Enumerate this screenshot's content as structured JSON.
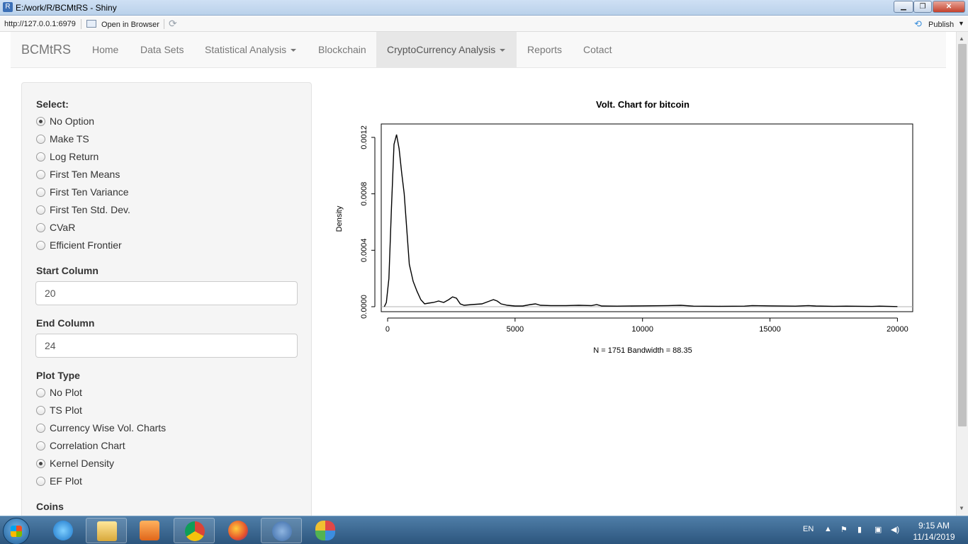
{
  "window": {
    "app_icon": "R",
    "title": "E:/work/R/BCMtRS - Shiny",
    "buttons": {
      "minimize": "▁",
      "maximize": "❐",
      "close": "✕"
    }
  },
  "toolbar": {
    "url": "http://127.0.0.1:6979",
    "open_in_browser": "Open in Browser",
    "publish": "Publish",
    "icons": {
      "refresh": "refresh-icon",
      "publish": "publish-icon"
    }
  },
  "navbar": {
    "brand": "BCMtRS",
    "items": [
      {
        "label": "Home"
      },
      {
        "label": "Data Sets"
      },
      {
        "label": "Statistical Analysis"
      },
      {
        "label": "Blockchain"
      },
      {
        "label": "CryptoCurrency Analysis"
      },
      {
        "label": "Reports"
      },
      {
        "label": "Cotact"
      }
    ],
    "active": "CryptoCurrency Analysis"
  },
  "sidebar": {
    "select_label": "Select:",
    "select_options": [
      {
        "label": "No Option",
        "checked": true
      },
      {
        "label": "Make TS",
        "checked": false
      },
      {
        "label": "Log Return",
        "checked": false
      },
      {
        "label": "First Ten Means",
        "checked": false
      },
      {
        "label": "First Ten Variance",
        "checked": false
      },
      {
        "label": "First Ten Std. Dev.",
        "checked": false
      },
      {
        "label": "CVaR",
        "checked": false
      },
      {
        "label": "Efficient Frontier",
        "checked": false
      }
    ],
    "start_column_label": "Start Column",
    "start_column_value": "20",
    "end_column_label": "End Column",
    "end_column_value": "24",
    "plot_type_label": "Plot Type",
    "plot_type_options": [
      {
        "label": "No Plot",
        "checked": false
      },
      {
        "label": "TS Plot",
        "checked": false
      },
      {
        "label": "Currency Wise Vol. Charts",
        "checked": false
      },
      {
        "label": "Correlation Chart",
        "checked": false
      },
      {
        "label": "Kernel Density",
        "checked": true
      },
      {
        "label": "EF Plot",
        "checked": false
      }
    ],
    "coins_label": "Coins"
  },
  "chart_data": {
    "type": "line",
    "title": "Volt. Chart for  bitcoin",
    "xlabel": "N = 1751   Bandwidth = 88.35",
    "ylabel": "Density",
    "xlim": [
      -250,
      20600
    ],
    "ylim": [
      0,
      0.00126
    ],
    "x_ticks": [
      0,
      5000,
      10000,
      15000,
      20000
    ],
    "x_tick_labels": [
      "0",
      "5000",
      "10000",
      "15000",
      "20000"
    ],
    "y_ticks": [
      0,
      0.0004,
      0.0008,
      0.0012
    ],
    "y_tick_labels": [
      "0.0000",
      "0.0004",
      "0.0008",
      "0.0012"
    ],
    "grid": false,
    "series": [
      {
        "x": [
          -130,
          -50,
          50,
          150,
          250,
          350,
          450,
          550,
          650,
          750,
          850,
          1000,
          1150,
          1300,
          1450,
          1600,
          1800,
          2000,
          2200,
          2400,
          2550,
          2700,
          2850,
          3000,
          3300,
          3700,
          4000,
          4150,
          4300,
          4450,
          4700,
          5000,
          5300,
          5600,
          5800,
          6000,
          6400,
          7000,
          7500,
          8000,
          8200,
          8400,
          9000,
          10000,
          11000,
          11500,
          12000,
          13000,
          14000,
          14300,
          15000,
          16000,
          16500,
          16800,
          17500,
          18000,
          19000,
          19300,
          20000
        ],
        "y": [
          0.0,
          3e-05,
          0.0002,
          0.0007,
          0.00115,
          0.00122,
          0.00112,
          0.00095,
          0.0008,
          0.00055,
          0.0003,
          0.00018,
          0.00011,
          5e-05,
          2e-05,
          2.5e-05,
          3e-05,
          4e-05,
          3e-05,
          5e-05,
          7e-05,
          6e-05,
          2e-05,
          1e-05,
          1.5e-05,
          2e-05,
          4e-05,
          5e-05,
          4e-05,
          2e-05,
          1e-05,
          5e-06,
          5e-06,
          1.5e-05,
          2e-05,
          1e-05,
          8e-06,
          8e-06,
          1e-05,
          8e-06,
          1.5e-05,
          5e-06,
          4e-06,
          6e-06,
          8e-06,
          1e-05,
          4e-06,
          3e-06,
          4e-06,
          8e-06,
          6e-06,
          4e-06,
          8e-06,
          5e-06,
          3e-06,
          4e-06,
          2e-06,
          4e-06,
          1e-06
        ]
      }
    ]
  },
  "taskbar": {
    "apps": [
      "internet-explorer-icon",
      "file-explorer-icon",
      "media-player-icon",
      "chrome-icon",
      "firefox-icon",
      "r-icon",
      "paint-icon"
    ],
    "language": "EN",
    "time": "9:15 AM",
    "date": "11/14/2019"
  }
}
